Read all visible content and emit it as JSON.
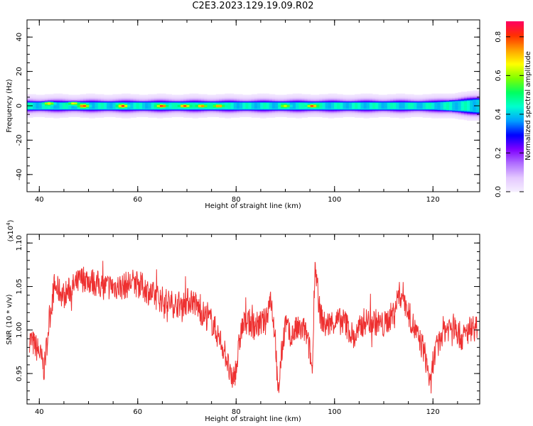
{
  "title": "C2E3.2023.129.19.09.R02",
  "colors": {
    "snr_line": "#ee3030",
    "colormap": [
      "#f6f0ff",
      "#e4c8ff",
      "#b070ff",
      "#8000ff",
      "#0000ff",
      "#00a0ff",
      "#00ffd0",
      "#00ff60",
      "#80ff00",
      "#ffff00",
      "#ffa000",
      "#ff3000",
      "#ff0060"
    ]
  },
  "chart_data": [
    {
      "type": "heatmap",
      "xlabel": "Height of straight line (km)",
      "ylabel": "Frequency (Hz)",
      "xlim": [
        37.5,
        129.5
      ],
      "ylim": [
        -50,
        50
      ],
      "x_ticks": [
        "40",
        "60",
        "80",
        "100",
        "120"
      ],
      "y_ticks": [
        "40",
        "20",
        "0",
        "-20",
        "-40"
      ],
      "colorbar": {
        "label": "Normalized spectral amplitude",
        "range": [
          0,
          0.88
        ],
        "ticks": [
          "0.0",
          "0.2",
          "0.4",
          "0.6",
          "0.8"
        ]
      },
      "band_center_hz": 0,
      "band_half_width_hz": [
        2.5,
        2.5,
        2.5,
        2.5,
        2.5,
        2.5,
        2.5,
        2.5,
        2.5,
        2.5,
        3.5,
        4.5
      ],
      "band_half_width_x": [
        38,
        50,
        60,
        70,
        80,
        88,
        96,
        100,
        110,
        120,
        125,
        129
      ],
      "hotspots": [
        {
          "x": 42,
          "y": 1.5,
          "amp": 0.7
        },
        {
          "x": 47,
          "y": 1.5,
          "amp": 0.7
        },
        {
          "x": 49,
          "y": 0,
          "amp": 0.85
        },
        {
          "x": 57,
          "y": 0,
          "amp": 0.85
        },
        {
          "x": 65,
          "y": 0,
          "amp": 0.88
        },
        {
          "x": 69.5,
          "y": 0,
          "amp": 0.85
        },
        {
          "x": 73,
          "y": 0,
          "amp": 0.8
        },
        {
          "x": 76.5,
          "y": 0,
          "amp": 0.8
        },
        {
          "x": 90,
          "y": 0,
          "amp": 0.65
        },
        {
          "x": 95.5,
          "y": 0,
          "amp": 0.85
        }
      ]
    },
    {
      "type": "line",
      "xlabel": "Height of straight line (km)",
      "ylabel": "SNR (10 * v/v)",
      "y_exponent_label": "(x10",
      "y_exponent_power": "4",
      "y_exponent_close": ")",
      "xlim": [
        37.5,
        129.5
      ],
      "ylim": [
        0.915,
        1.11
      ],
      "x_ticks": [
        "40",
        "60",
        "80",
        "100",
        "120"
      ],
      "y_ticks": [
        "1.10",
        "1.05",
        "1.00",
        "0.95"
      ],
      "series": [
        {
          "x": [
            38,
            40,
            41,
            42,
            43,
            45,
            47,
            49,
            51,
            53,
            55,
            57,
            59,
            61,
            63,
            65,
            67,
            69,
            71,
            73,
            75,
            77,
            78,
            79,
            80,
            81,
            82,
            84,
            86,
            87,
            88,
            88.5,
            89,
            90,
            91,
            92,
            93,
            94,
            95,
            95.5,
            96,
            97,
            98,
            100,
            102,
            104,
            106,
            108,
            110,
            112,
            113,
            114,
            115,
            116,
            117,
            118,
            119,
            119.5,
            120,
            121,
            122,
            124,
            126,
            128,
            129
          ],
          "y": [
            0.99,
            0.975,
            0.955,
            1.01,
            1.05,
            1.04,
            1.05,
            1.06,
            1.055,
            1.05,
            1.05,
            1.05,
            1.055,
            1.05,
            1.04,
            1.035,
            1.03,
            1.03,
            1.035,
            1.02,
            1.01,
            0.985,
            0.97,
            0.94,
            0.955,
            1.0,
            1.01,
            1.005,
            1.01,
            1.04,
            0.99,
            0.92,
            0.96,
            1.01,
            0.99,
            1.0,
            1.0,
            1.0,
            0.975,
            0.95,
            1.08,
            1.02,
            1.005,
            1.01,
            1.01,
            0.99,
            1.01,
            1.01,
            1.005,
            1.02,
            1.04,
            1.04,
            1.02,
            1.005,
            0.99,
            0.98,
            0.955,
            0.93,
            0.965,
            0.98,
            1.0,
            1.005,
            0.99,
            1.005,
            1.0
          ]
        }
      ]
    }
  ]
}
